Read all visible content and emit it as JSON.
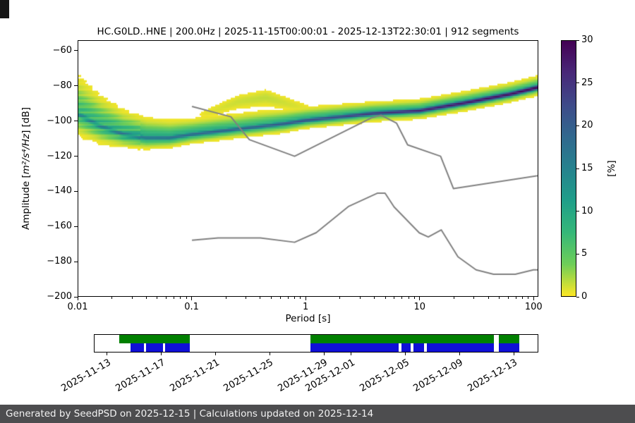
{
  "figure": {
    "background": "#ffffff"
  },
  "footer": {
    "text": "Generated by SeedPSD on 2025-12-15 | Calculations updated on 2025-12-14",
    "background": "#4d4d4f",
    "text_color": "#f2f2f2"
  },
  "chart_data": {
    "type": "heatmap",
    "title": "HC.G0LD..HNE | 200.0Hz | 2025-11-15T00:00:01 - 2025-12-13T22:30:01 | 912 segments",
    "xlabel": "Period [s]",
    "ylabel": "Amplitude [m²/s⁴/Hz] [dB]",
    "ylabel_parts": {
      "prefix": "Amplitude [",
      "math": "m²/s⁴/Hz",
      "suffix": "] [dB]"
    },
    "xscale": "log",
    "xlim": [
      0.01,
      110
    ],
    "ylim": [
      -200,
      -54
    ],
    "xticks": [
      0.01,
      0.1,
      1,
      10,
      100
    ],
    "xtick_labels": [
      "0.01",
      "0.1",
      "1",
      "10",
      "100"
    ],
    "yticks": [
      -200,
      -180,
      -160,
      -140,
      -120,
      -100,
      -80,
      -60
    ],
    "ytick_labels": [
      "−200",
      "−180",
      "−160",
      "−140",
      "−120",
      "−100",
      "−80",
      "−60"
    ],
    "grid": false,
    "colorbar": {
      "label": "[%]",
      "min": 0,
      "max": 30,
      "ticks": [
        0,
        5,
        10,
        15,
        20,
        25,
        30
      ],
      "tick_labels": [
        "0",
        "5",
        "10",
        "15",
        "20",
        "25",
        "30"
      ],
      "colormap": "viridis reversed (0% = yellow, 30% = dark purple)",
      "gradient_stops": [
        "#fde725",
        "#6ece58",
        "#35b779",
        "#1f9e89",
        "#26828e",
        "#31688e",
        "#3e4a89",
        "#482878",
        "#440154"
      ]
    },
    "ppsd_distribution": {
      "note": "PPSD probability cloud: percent(A) = max(broad, core) Gaussians around mode_db per log10 period",
      "log10_period": [
        -2.0,
        -1.8,
        -1.6,
        -1.4,
        -1.2,
        -1.0,
        -0.8,
        -0.6,
        -0.4,
        -0.2,
        0.0,
        0.3,
        0.6,
        1.0,
        1.4,
        1.8,
        2.05
      ],
      "mode_db": [
        -96,
        -103,
        -107.5,
        -109.5,
        -109.5,
        -107.5,
        -106,
        -104.5,
        -103,
        -101.5,
        -99.5,
        -97.5,
        -95.5,
        -94,
        -89.5,
        -84.5,
        -80.5
      ],
      "sigma_up": [
        9,
        7,
        5.5,
        4.5,
        4,
        3.5,
        3.5,
        3.5,
        3.5,
        3.2,
        3,
        2.8,
        2.6,
        2.6,
        2.6,
        2.6,
        2.6
      ],
      "sigma_down": [
        5,
        4,
        3,
        2.5,
        2.2,
        2,
        2,
        2,
        2,
        2,
        1.8,
        1.8,
        1.8,
        1.8,
        1.8,
        1.8,
        1.8
      ],
      "broad_peak": [
        7,
        8,
        9,
        10,
        10,
        10,
        10,
        9,
        9,
        10,
        10,
        10,
        10,
        10,
        10,
        10,
        10
      ],
      "core_sigma": [
        2.0,
        1.6,
        1.3,
        1.2,
        1.1,
        1.0,
        1.0,
        1.0,
        1.0,
        1.0,
        1.0,
        1.0,
        1.0,
        1.0,
        1.1,
        1.1,
        1.1
      ],
      "core_peak": [
        12,
        13,
        15,
        17,
        18,
        19,
        20,
        20,
        20,
        21,
        22,
        23,
        25,
        27,
        28,
        29,
        30
      ]
    },
    "secondary_bump": {
      "note": "faint low-probability yellow arcs above the main band between ~0.15s and 1s",
      "log10_period": [
        -1.0,
        -0.85,
        -0.6,
        -0.35,
        -0.1,
        0.15
      ],
      "mode_db": [
        -97,
        -95,
        -89,
        -86.5,
        -91,
        -95
      ],
      "sigma_db": [
        1.5,
        1.8,
        2.2,
        2.5,
        2.0,
        1.5
      ],
      "peak_pct": [
        0,
        0.7,
        1.3,
        1.6,
        1.0,
        0
      ]
    },
    "noise_models": {
      "color": "#808080",
      "nhnm": {
        "name": "Peterson New High Noise Model",
        "periods": [
          0.1,
          0.22,
          0.32,
          0.8,
          3.8,
          4.6,
          6.3,
          7.9,
          15.4,
          20.0,
          354.8
        ],
        "db": [
          -91.5,
          -97.4,
          -110.5,
          -120.0,
          -98.0,
          -96.5,
          -101.0,
          -113.5,
          -120.0,
          -138.5,
          -126.0
        ]
      },
      "nlnm": {
        "name": "Peterson New Low Noise Model",
        "periods": [
          0.1,
          0.17,
          0.4,
          0.8,
          1.24,
          2.4,
          4.3,
          5.0,
          6.0,
          10.0,
          12.0,
          15.6,
          21.9,
          31.6,
          45.0,
          70.0,
          101.0,
          154.0
        ],
        "db": [
          -168.0,
          -166.7,
          -166.7,
          -169.2,
          -163.7,
          -148.6,
          -141.1,
          -141.1,
          -149.0,
          -163.8,
          -166.2,
          -162.1,
          -177.5,
          -185.0,
          -187.5,
          -187.5,
          -185.0,
          -185.0
        ]
      }
    },
    "timeline": {
      "note": "data coverage bar; positions are fractions of the axis width",
      "green_color": "#008000",
      "blue_color": "#0f0fd6",
      "green_segments": [
        [
          0.055,
          0.215
        ],
        [
          0.487,
          0.902
        ],
        [
          0.913,
          0.958
        ]
      ],
      "blue_segments": [
        [
          0.082,
          0.112
        ],
        [
          0.117,
          0.155
        ],
        [
          0.16,
          0.215
        ],
        [
          0.487,
          0.686
        ],
        [
          0.692,
          0.713
        ],
        [
          0.719,
          0.744
        ],
        [
          0.75,
          0.902
        ],
        [
          0.913,
          0.958
        ]
      ],
      "tick_positions": [
        0.03,
        0.152,
        0.274,
        0.396,
        0.518,
        0.579,
        0.701,
        0.823,
        0.945
      ],
      "tick_labels": [
        "2025-11-13",
        "2025-11-17",
        "2025-11-21",
        "2025-11-25",
        "2025-11-29",
        "2025-12-01",
        "2025-12-05",
        "2025-12-09",
        "2025-12-13"
      ]
    }
  }
}
